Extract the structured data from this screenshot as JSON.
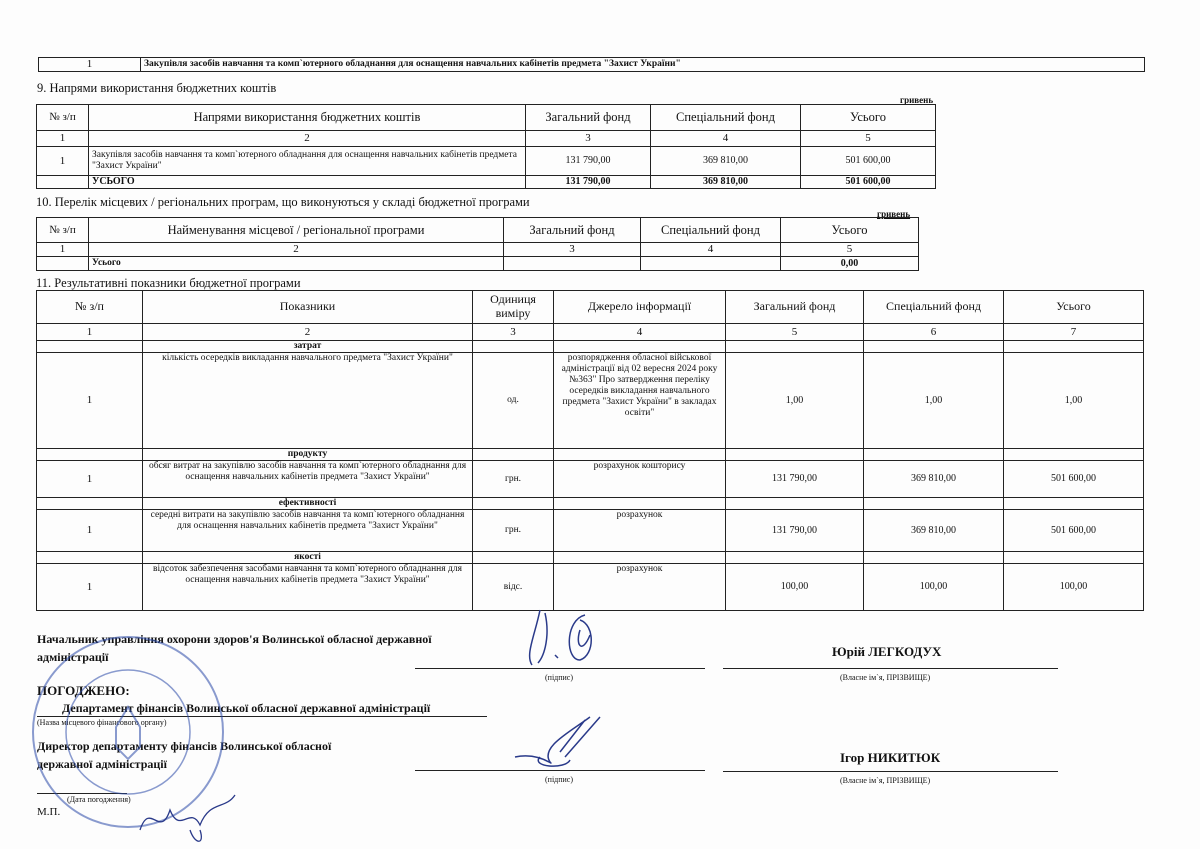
{
  "top_row": {
    "num": "1",
    "text": "Закупівля засобів навчання та комп`ютерного обладнання для оснащення навчальних кабінетів предмета \"Захист України\""
  },
  "section9": {
    "title": "9. Напрями використання бюджетних коштів",
    "unit": "гривень",
    "headers": [
      "№ з/п",
      "Напрями використання бюджетних коштів",
      "Загальний фонд",
      "Спеціальний фонд",
      "Усього"
    ],
    "col_nums": [
      "1",
      "2",
      "3",
      "4",
      "5"
    ],
    "rows": [
      {
        "num": "1",
        "name": "Закупівля засобів навчання та комп`ютерного обладнання для оснащення навчальних кабінетів предмета \"Захист України\"",
        "general": "131 790,00",
        "special": "369 810,00",
        "total": "501 600,00"
      }
    ],
    "total": {
      "label": "УСЬОГО",
      "general": "131 790,00",
      "special": "369 810,00",
      "total": "501 600,00"
    }
  },
  "section10": {
    "title": "10. Перелік місцевих / регіональних програм, що виконуються у складі бюджетної програми",
    "unit": "гривень",
    "headers": [
      "№ з/п",
      "Найменування місцевої / регіональної програми",
      "Загальний фонд",
      "Спеціальний фонд",
      "Усього"
    ],
    "col_nums": [
      "1",
      "2",
      "3",
      "4",
      "5"
    ],
    "total": {
      "label": "Усього",
      "total": "0,00"
    }
  },
  "section11": {
    "title": "11. Результативні показники бюджетної програми",
    "headers": [
      "№ з/п",
      "Показники",
      "Одиниця виміру",
      "Джерело інформації",
      "Загальний фонд",
      "Спеціальний фонд",
      "Усього"
    ],
    "col_nums": [
      "1",
      "2",
      "3",
      "4",
      "5",
      "6",
      "7"
    ],
    "groups": [
      {
        "name": "затрат",
        "num": "1",
        "indicator": "кількість осередків викладання навчального предмета \"Захист України\"",
        "unit": "од.",
        "source": "розпорядження обласної військової адміністрації від 02 вересня 2024 року №363\" Про затвердження переліку осередків викладання навчального предмета \"Захист України\" в закладах освіти\"",
        "general": "1,00",
        "special": "1,00",
        "total": "1,00"
      },
      {
        "name": "продукту",
        "num": "1",
        "indicator": "обсяг витрат на закупівлю засобів навчання та комп`ютерного обладнання для оснащення навчальних кабінетів предмета \"Захист України\"",
        "unit": "грн.",
        "source": "розрахунок кошторису",
        "general": "131 790,00",
        "special": "369 810,00",
        "total": "501 600,00"
      },
      {
        "name": "ефективності",
        "num": "1",
        "indicator": "середні витрати на закупівлю засобів навчання та комп`ютерного обладнання для оснащення навчальних кабінетів предмета \"Захист України\"",
        "unit": "грн.",
        "source": "розрахунок",
        "general": "131 790,00",
        "special": "369 810,00",
        "total": "501 600,00"
      },
      {
        "name": "якості",
        "num": "1",
        "indicator": "відсоток забезпечення засобами навчання та комп`ютерного обладнання для оснащення навчальних кабінетів предмета \"Захист України\"",
        "unit": "відс.",
        "source": "розрахунок",
        "general": "100,00",
        "special": "100,00",
        "total": "100,00"
      }
    ]
  },
  "signatures": {
    "head_title": "Начальник управління охорони здоров'я Волинської обласної державної адміністрації",
    "head_name": "Юрій ЛЕГКОДУХ",
    "sign_caption": "(підпис)",
    "name_caption": "(Власне ім`я, ПРІЗВИЩЕ)",
    "agreed": "ПОГОДЖЕНО:",
    "finance_dept": "Департамент фінансів Волинської обласної державної адміністрації",
    "finance_caption": "(Назва місцевого фінансового органу)",
    "director_title": "Директор департаменту фінансів Волинської обласної державної адміністрації",
    "director_name": "Ігор НИКИТЮК",
    "date_caption": "(Дата погодження)",
    "mp": "М.П.",
    "stamp_text": "ДЕПАРТАМЕНТ ФІНАНСІВ ВОЛИНСЬКОЇ ОБЛАСНОЇ ДЕРЖАВНОЇ АДМІНІСТРАЦІЇ • УКРАЇНА • ЄДРПОУ 02311736"
  }
}
